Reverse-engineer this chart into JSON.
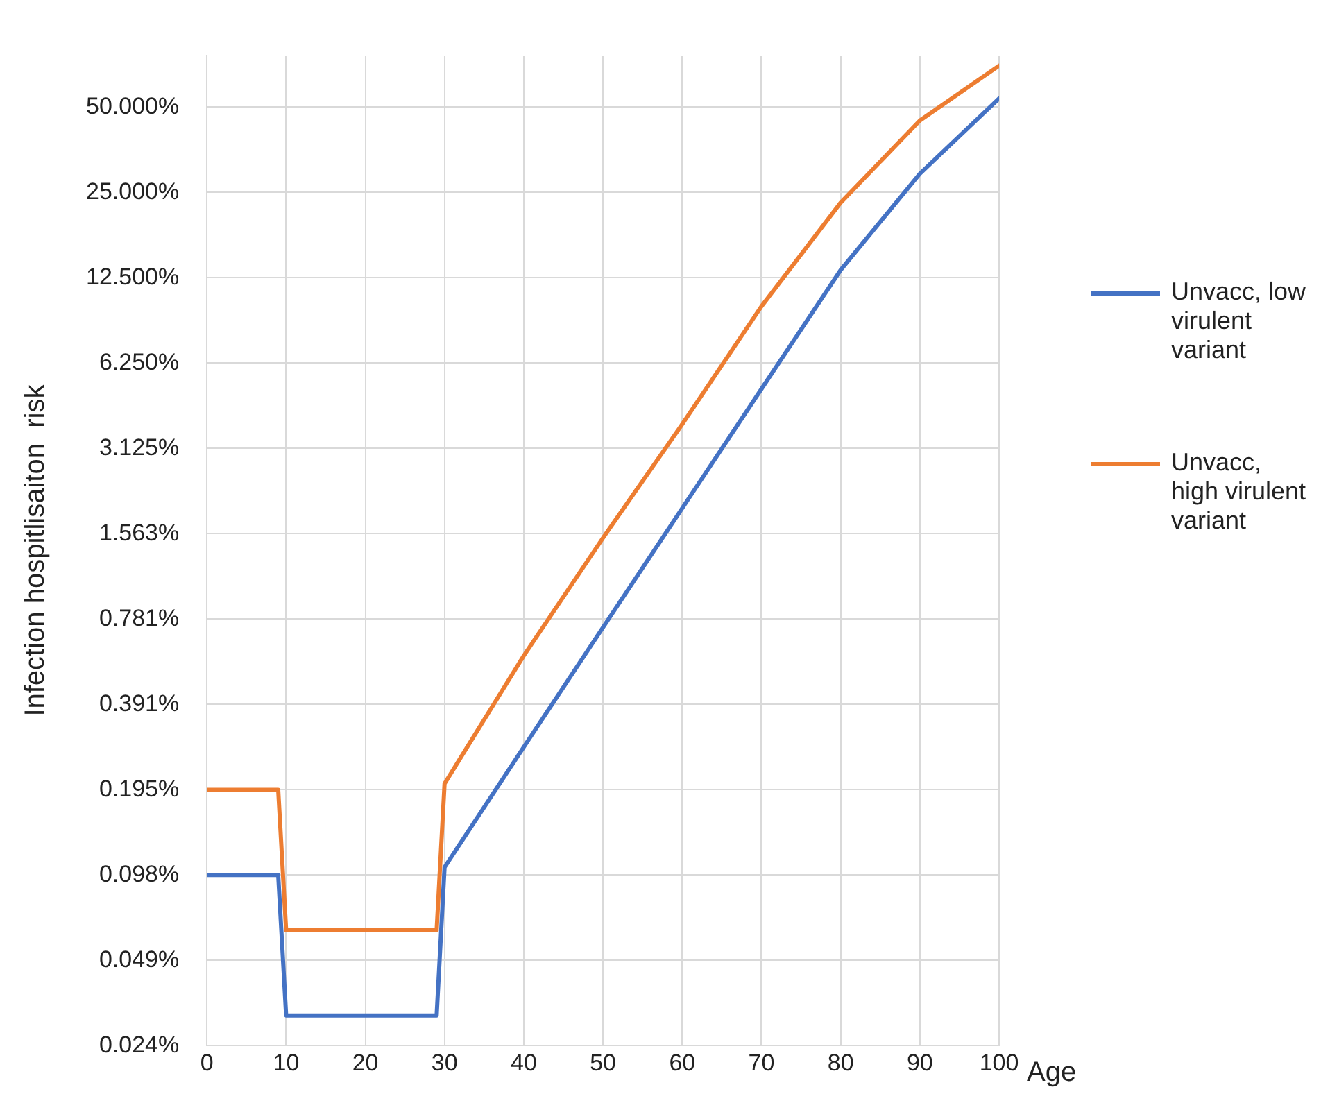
{
  "chart_data": {
    "type": "line",
    "xlabel": "Age",
    "ylabel": "Infection hospitlisaiton  risk",
    "x": [
      0,
      9,
      10,
      29,
      30,
      40,
      50,
      60,
      70,
      80,
      90,
      100
    ],
    "series": [
      {
        "name": "Unvacc, low virulent variant",
        "color": "#4472c4",
        "values": [
          0.0977,
          0.0977,
          0.0312,
          0.0312,
          0.104,
          0.276,
          0.73,
          1.92,
          5.06,
          13.3,
          29.1,
          53.6
        ]
      },
      {
        "name": "Unvacc, high virulent variant",
        "color": "#ed7d31",
        "values": [
          0.195,
          0.195,
          0.0623,
          0.0623,
          0.205,
          0.58,
          1.51,
          3.8,
          9.9,
          23,
          44.8,
          70
        ]
      }
    ],
    "log": "y",
    "xlim": [
      0,
      100
    ],
    "xticks": [
      0,
      10,
      20,
      30,
      40,
      50,
      60,
      70,
      80,
      90,
      100
    ],
    "ylim": [
      0.024414,
      76
    ],
    "yticks": [
      {
        "value": 0.024414,
        "label": "0.024%"
      },
      {
        "value": 0.048828,
        "label": "0.049%"
      },
      {
        "value": 0.097656,
        "label": "0.098%"
      },
      {
        "value": 0.195313,
        "label": "0.195%"
      },
      {
        "value": 0.390625,
        "label": "0.391%"
      },
      {
        "value": 0.78125,
        "label": "0.781%"
      },
      {
        "value": 1.5625,
        "label": "1.563%"
      },
      {
        "value": 3.125,
        "label": "3.125%"
      },
      {
        "value": 6.25,
        "label": "6.250%"
      },
      {
        "value": 12.5,
        "label": "12.500%"
      },
      {
        "value": 25,
        "label": "25.000%"
      },
      {
        "value": 50,
        "label": "50.000%"
      }
    ],
    "grid": true,
    "legend": "right",
    "marker": "none",
    "line_style": "solid"
  }
}
